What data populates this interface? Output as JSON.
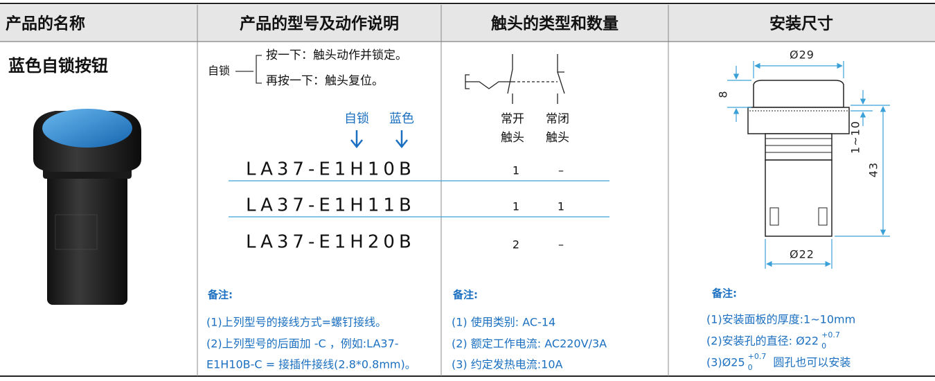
{
  "header": [
    "产品的名称",
    "产品的型号及动作说明",
    "触头的类型和数量",
    "安装尺寸"
  ],
  "product": {
    "name": "蓝色自锁按钮"
  },
  "action": {
    "label": "自锁",
    "steps": [
      "按一下：触头动作并锁定。",
      "再按一下：触头复位。"
    ]
  },
  "model_callouts": [
    "自锁",
    "蓝色"
  ],
  "contact_types": [
    [
      "常开",
      "触头"
    ],
    [
      "常闭",
      "触头"
    ]
  ],
  "models": [
    {
      "model": "LA37-E1H10B",
      "no": 1,
      "nc": "–"
    },
    {
      "model": "LA37-E1H11B",
      "no": 1,
      "nc": 1
    },
    {
      "model": "LA37-E1H20B",
      "no": 2,
      "nc": "–"
    }
  ],
  "dimensions": {
    "top_diameter": "Ø29",
    "cap_height": "8",
    "panel": "1~10",
    "height": "43",
    "body_diameter": "Ø22"
  },
  "notes": {
    "model": {
      "title": "备注:",
      "lines": [
        "(1)上列型号的接线方式=螺钉接线。",
        "(2)上列型号的后面加 -C ，例如:LA37-",
        "E1H10B-C = 接插件接线(2.8*0.8mm)。"
      ]
    },
    "contacts": {
      "title": "备注:",
      "lines": [
        "(1) 使用类别: AC-14",
        "(2) 额定工作电流: AC220V/3A",
        "(3) 约定发热电流:10A"
      ]
    },
    "mounting": {
      "title": "备注:",
      "lines": [
        {
          "text": "(1)安装面板的厚度:1~10mm"
        },
        {
          "text": "(2)安装孔的直径: Ø22",
          "upper": "+0.7",
          "lower": "0"
        },
        {
          "text": "(3)Ø25",
          "upper": "+0.7",
          "lower": "0",
          "after": "圆孔也可以安装"
        }
      ]
    }
  }
}
